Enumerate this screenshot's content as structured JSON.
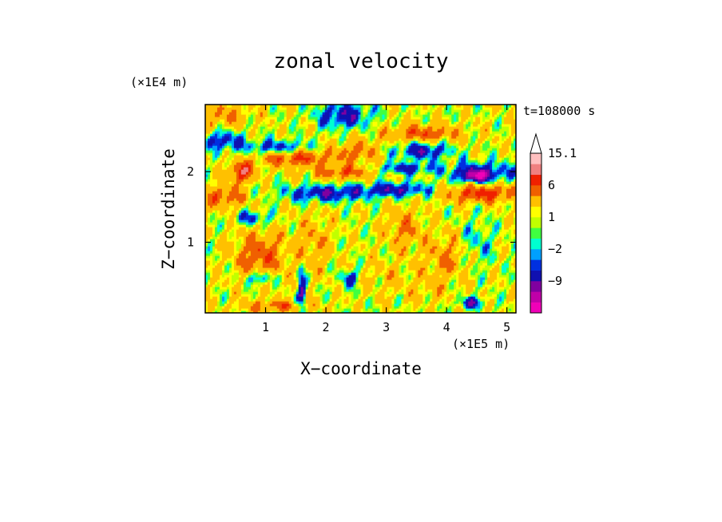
{
  "chart_data": {
    "type": "heatmap",
    "title": "zonal velocity",
    "xlabel": "X−coordinate",
    "ylabel": "Z−coordinate",
    "x_multiplier": "(×1E5 m)",
    "y_multiplier": "(×1E4 m)",
    "time_label": "t=108000 s",
    "xlim": [
      0,
      5.15
    ],
    "ylim": [
      0,
      2.95
    ],
    "x_ticks": [
      {
        "value": 1,
        "label": "1"
      },
      {
        "value": 2,
        "label": "2"
      },
      {
        "value": 3,
        "label": "3"
      },
      {
        "value": 4,
        "label": "4"
      },
      {
        "value": 5,
        "label": "5"
      }
    ],
    "y_ticks": [
      {
        "value": 1,
        "label": "1"
      },
      {
        "value": 2,
        "label": "2"
      }
    ],
    "colorbar": {
      "levels": [
        -15,
        -12,
        -9,
        -6,
        -3,
        -2,
        -1,
        0,
        1,
        2,
        3,
        6,
        9,
        12,
        15.1
      ],
      "colors": [
        "#f000b8",
        "#c000a8",
        "#8000a0",
        "#1010b0",
        "#0030e0",
        "#00a0ff",
        "#00ffd0",
        "#40ff40",
        "#c0ff00",
        "#ffff00",
        "#ffc000",
        "#f06000",
        "#f02000",
        "#f08080",
        "#ffc0c0"
      ],
      "over_color": "#ffffff",
      "labeled_levels": [
        {
          "value": 15.1,
          "label": "15.1"
        },
        {
          "value": 6,
          "label": "6"
        },
        {
          "value": 1,
          "label": "1"
        },
        {
          "value": -2,
          "label": "−2"
        },
        {
          "value": -9,
          "label": "−9"
        }
      ]
    },
    "field_features": [
      {
        "x": 4.5,
        "z": 1.95,
        "value": -11,
        "sx": 0.22,
        "sz": 0.08
      },
      {
        "x": 3.6,
        "z": 2.3,
        "value": -7,
        "sx": 0.45,
        "sz": 0.12
      },
      {
        "x": 4.6,
        "z": 2.0,
        "value": -6,
        "sx": 0.6,
        "sz": 0.15
      },
      {
        "x": 0.3,
        "z": 2.45,
        "value": -6,
        "sx": 0.35,
        "sz": 0.14
      },
      {
        "x": 1.2,
        "z": 2.35,
        "value": -6,
        "sx": 0.55,
        "sz": 0.1
      },
      {
        "x": 2.3,
        "z": 2.8,
        "value": -7,
        "sx": 0.45,
        "sz": 0.18
      },
      {
        "x": 2.0,
        "z": 1.7,
        "value": -7,
        "sx": 0.7,
        "sz": 0.12
      },
      {
        "x": 3.2,
        "z": 1.75,
        "value": -7,
        "sx": 0.55,
        "sz": 0.1
      },
      {
        "x": 3.3,
        "z": 2.05,
        "value": -6,
        "sx": 0.5,
        "sz": 0.08
      },
      {
        "x": 0.8,
        "z": 1.35,
        "value": -5,
        "sx": 0.3,
        "sz": 0.1
      },
      {
        "x": 0.9,
        "z": 0.5,
        "value": -7,
        "sx": 0.22,
        "sz": 0.1
      },
      {
        "x": 2.4,
        "z": 0.5,
        "value": -6,
        "sx": 0.15,
        "sz": 0.12
      },
      {
        "x": 4.4,
        "z": 0.15,
        "value": -7,
        "sx": 0.2,
        "sz": 0.08
      },
      {
        "x": 4.5,
        "z": 1.0,
        "value": -3,
        "sx": 0.3,
        "sz": 0.35
      },
      {
        "x": 1.6,
        "z": 0.3,
        "value": -8,
        "sx": 0.07,
        "sz": 0.3
      },
      {
        "x": 0.6,
        "z": 2.0,
        "value": 9,
        "sx": 0.2,
        "sz": 0.14
      },
      {
        "x": 1.5,
        "z": 2.2,
        "value": 7,
        "sx": 0.6,
        "sz": 0.12
      },
      {
        "x": 2.3,
        "z": 2.0,
        "value": 6,
        "sx": 0.5,
        "sz": 0.1
      },
      {
        "x": 4.6,
        "z": 1.7,
        "value": 8,
        "sx": 0.6,
        "sz": 0.12
      },
      {
        "x": 3.6,
        "z": 2.55,
        "value": 6,
        "sx": 0.6,
        "sz": 0.12
      },
      {
        "x": 2.5,
        "z": 2.3,
        "value": 5,
        "sx": 0.35,
        "sz": 0.15
      },
      {
        "x": 0.3,
        "z": 1.65,
        "value": 6,
        "sx": 0.35,
        "sz": 0.15
      },
      {
        "x": 0.3,
        "z": 2.8,
        "value": 4,
        "sx": 0.4,
        "sz": 0.18
      },
      {
        "x": 0.9,
        "z": 0.8,
        "value": 6,
        "sx": 0.4,
        "sz": 0.35
      },
      {
        "x": 3.3,
        "z": 1.2,
        "value": 4,
        "sx": 0.3,
        "sz": 0.3
      },
      {
        "x": 4.0,
        "z": 0.8,
        "value": 4,
        "sx": 0.35,
        "sz": 0.3
      },
      {
        "x": 1.8,
        "z": 1.0,
        "value": 3,
        "sx": 0.3,
        "sz": 0.4
      },
      {
        "x": 3.0,
        "z": 0.5,
        "value": 1.6,
        "sx": 0.45,
        "sz": 0.25
      },
      {
        "x": 3.7,
        "z": 0.35,
        "value": 1.6,
        "sx": 0.35,
        "sz": 0.2
      },
      {
        "x": 1.2,
        "z": 0.1,
        "value": 5,
        "sx": 0.6,
        "sz": 0.08
      }
    ]
  }
}
